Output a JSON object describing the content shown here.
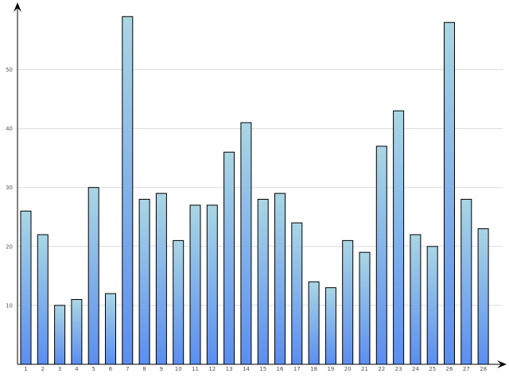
{
  "chart_data": {
    "type": "bar",
    "title": "",
    "xlabel": "",
    "ylabel": "",
    "categories": [
      "1",
      "2",
      "3",
      "4",
      "5",
      "6",
      "7",
      "8",
      "9",
      "10",
      "11",
      "12",
      "13",
      "14",
      "15",
      "16",
      "17",
      "18",
      "19",
      "20",
      "21",
      "22",
      "23",
      "24",
      "25",
      "26",
      "27",
      "28"
    ],
    "values": [
      26,
      22,
      10,
      11,
      30,
      12,
      59,
      28,
      29,
      21,
      27,
      27,
      36,
      41,
      28,
      29,
      24,
      14,
      13,
      21,
      19,
      37,
      43,
      22,
      20,
      58,
      28,
      23
    ],
    "ylim": [
      0,
      61
    ],
    "yticks": [
      "10",
      "20",
      "30",
      "40",
      "50"
    ],
    "grid": true,
    "legend": "none",
    "colors": {
      "bar_top": "#aad6e4",
      "bar_bottom": "#5b8ef0",
      "bar_outline": "#000000",
      "grid": "#dcdcdc",
      "axis": "#000000"
    }
  }
}
